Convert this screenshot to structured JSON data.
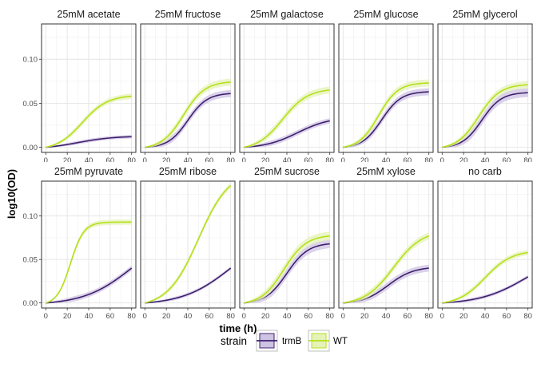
{
  "chart_data": {
    "type": "line",
    "ylabel": "log10(OD)",
    "xlabel": "time (h)",
    "xlim": [
      0,
      80
    ],
    "ylim": [
      0,
      0.135
    ],
    "x_ticks": [
      "0",
      "20",
      "40",
      "60",
      "80"
    ],
    "y_ticks": [
      "0.00",
      "0.05",
      "0.10"
    ],
    "x_tick_values": [
      0,
      20,
      40,
      60,
      80
    ],
    "y_tick_values": [
      0,
      0.05,
      0.1
    ],
    "grid": true,
    "legend": {
      "title": "strain",
      "position": "bottom",
      "entries": [
        {
          "label": "trmB",
          "color": "#3f1f6e",
          "fill": "#cdc3e3"
        },
        {
          "label": "WT",
          "color": "#b5e01b",
          "fill": "#e6f2b8"
        }
      ]
    },
    "panels": [
      {
        "label": "25mM acetate",
        "series": {
          "trmB": {
            "max": 0.012,
            "mid": 30,
            "k": 0.06,
            "ci": 0.002
          },
          "WT": {
            "max": 0.058,
            "mid": 34,
            "k": 0.085,
            "ci": 0.003
          }
        }
      },
      {
        "label": "25mM fructose",
        "series": {
          "trmB": {
            "max": 0.061,
            "mid": 40,
            "k": 0.11,
            "ci": 0.004
          },
          "WT": {
            "max": 0.074,
            "mid": 36,
            "k": 0.1,
            "ci": 0.004
          }
        }
      },
      {
        "label": "25mM galactose",
        "series": {
          "trmB": {
            "max": 0.03,
            "mid": 50,
            "k": 0.065,
            "ci": 0.003
          },
          "WT": {
            "max": 0.065,
            "mid": 36,
            "k": 0.085,
            "ci": 0.004
          }
        }
      },
      {
        "label": "25mM glucose",
        "series": {
          "trmB": {
            "max": 0.063,
            "mid": 36,
            "k": 0.11,
            "ci": 0.004
          },
          "WT": {
            "max": 0.073,
            "mid": 33,
            "k": 0.11,
            "ci": 0.004
          }
        }
      },
      {
        "label": "25mM glycerol",
        "series": {
          "trmB": {
            "max": 0.062,
            "mid": 37,
            "k": 0.11,
            "ci": 0.005
          },
          "WT": {
            "max": 0.071,
            "mid": 34,
            "k": 0.1,
            "ci": 0.004
          }
        }
      },
      {
        "label": "25mM pyruvate",
        "series": {
          "trmB": {
            "max": 0.04,
            "mid": 80,
            "k": 0.045,
            "ci": 0.003
          },
          "WT": {
            "max": 0.093,
            "mid": 23,
            "k": 0.16,
            "ci": 0.003
          }
        }
      },
      {
        "label": "25mM ribose",
        "series": {
          "trmB": {
            "max": 0.04,
            "mid": 80,
            "k": 0.045,
            "ci": 0.002
          },
          "WT": {
            "max": 0.135,
            "mid": 50,
            "k": 0.07,
            "ci": 0.003
          }
        }
      },
      {
        "label": "25mM sucrose",
        "series": {
          "trmB": {
            "max": 0.068,
            "mid": 40,
            "k": 0.1,
            "ci": 0.005
          },
          "WT": {
            "max": 0.077,
            "mid": 37,
            "k": 0.095,
            "ci": 0.005
          }
        }
      },
      {
        "label": "25mM xylose",
        "series": {
          "trmB": {
            "max": 0.04,
            "mid": 42,
            "k": 0.085,
            "ci": 0.004
          },
          "WT": {
            "max": 0.077,
            "mid": 47,
            "k": 0.075,
            "ci": 0.004
          }
        }
      },
      {
        "label": "no carb",
        "series": {
          "trmB": {
            "max": 0.03,
            "mid": 80,
            "k": 0.045,
            "ci": 0.002
          },
          "WT": {
            "max": 0.058,
            "mid": 40,
            "k": 0.08,
            "ci": 0.003
          }
        }
      }
    ]
  }
}
